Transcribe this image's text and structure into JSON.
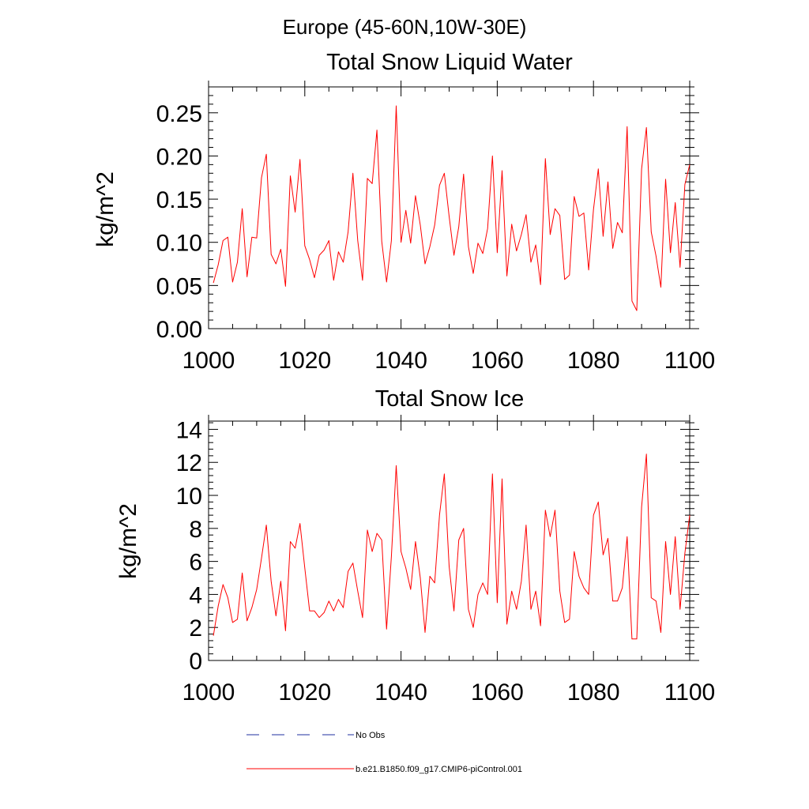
{
  "figure_title": "Europe (45-60N,10W-30E)",
  "colors": {
    "model_line": "#ff0000",
    "obs_line": "#1f2f9f",
    "axis": "#000000"
  },
  "legend": [
    {
      "label": "No Obs",
      "style": "dashed",
      "color": "#1f2f9f"
    },
    {
      "label": "b.e21.B1850.f09_g17.CMIP6-piControl.001",
      "style": "solid",
      "color": "#ff0000"
    }
  ],
  "chart_data": [
    {
      "type": "line",
      "title": "Total Snow Liquid Water",
      "xlabel": "",
      "ylabel": "kg/m^2",
      "xlim": [
        1000,
        1100
      ],
      "ylim": [
        0,
        0.28
      ],
      "xticks": [
        1000,
        1020,
        1040,
        1060,
        1080,
        1100
      ],
      "xtick_labels": [
        "1000",
        "1020",
        "1040",
        "1060",
        "1080",
        "1100"
      ],
      "yticks": [
        0,
        0.05,
        0.1,
        0.15,
        0.2,
        0.25
      ],
      "ytick_labels": [
        "0.00",
        "0.05",
        "0.10",
        "0.15",
        "0.20",
        "0.25"
      ],
      "series": [
        {
          "name": "b.e21.B1850.f09_g17.CMIP6-piControl.001",
          "x": [
            1001,
            1002,
            1003,
            1004,
            1005,
            1006,
            1007,
            1008,
            1009,
            1010,
            1011,
            1012,
            1013,
            1014,
            1015,
            1016,
            1017,
            1018,
            1019,
            1020,
            1021,
            1022,
            1023,
            1024,
            1025,
            1026,
            1027,
            1028,
            1029,
            1030,
            1031,
            1032,
            1033,
            1034,
            1035,
            1036,
            1037,
            1038,
            1039,
            1040,
            1041,
            1042,
            1043,
            1044,
            1045,
            1046,
            1047,
            1048,
            1049,
            1050,
            1051,
            1052,
            1053,
            1054,
            1055,
            1056,
            1057,
            1058,
            1059,
            1060,
            1061,
            1062,
            1063,
            1064,
            1065,
            1066,
            1067,
            1068,
            1069,
            1070,
            1071,
            1072,
            1073,
            1074,
            1075,
            1076,
            1077,
            1078,
            1079,
            1080,
            1081,
            1082,
            1083,
            1084,
            1085,
            1086,
            1087,
            1088,
            1089,
            1090,
            1091,
            1092,
            1093,
            1094,
            1095,
            1096,
            1097,
            1098,
            1099,
            1100
          ],
          "values": [
            0.053,
            0.074,
            0.102,
            0.106,
            0.054,
            0.077,
            0.139,
            0.06,
            0.106,
            0.105,
            0.175,
            0.202,
            0.086,
            0.075,
            0.092,
            0.049,
            0.177,
            0.135,
            0.196,
            0.096,
            0.08,
            0.059,
            0.085,
            0.091,
            0.102,
            0.056,
            0.089,
            0.077,
            0.112,
            0.18,
            0.102,
            0.056,
            0.174,
            0.168,
            0.23,
            0.101,
            0.054,
            0.102,
            0.258,
            0.1,
            0.137,
            0.099,
            0.154,
            0.12,
            0.075,
            0.095,
            0.12,
            0.166,
            0.18,
            0.13,
            0.085,
            0.118,
            0.179,
            0.095,
            0.064,
            0.099,
            0.087,
            0.116,
            0.2,
            0.088,
            0.183,
            0.061,
            0.121,
            0.09,
            0.109,
            0.132,
            0.077,
            0.097,
            0.051,
            0.197,
            0.109,
            0.139,
            0.131,
            0.057,
            0.062,
            0.153,
            0.13,
            0.134,
            0.068,
            0.138,
            0.185,
            0.107,
            0.17,
            0.093,
            0.123,
            0.111,
            0.234,
            0.032,
            0.021,
            0.185,
            0.233,
            0.112,
            0.084,
            0.048,
            0.173,
            0.088,
            0.146,
            0.071,
            0.167,
            0.19
          ]
        }
      ]
    },
    {
      "type": "line",
      "title": "Total Snow Ice",
      "xlabel": "",
      "ylabel": "kg/m^2",
      "xlim": [
        1000,
        1100
      ],
      "ylim": [
        0,
        14.5
      ],
      "xticks": [
        1000,
        1020,
        1040,
        1060,
        1080,
        1100
      ],
      "xtick_labels": [
        "1000",
        "1020",
        "1040",
        "1060",
        "1080",
        "1100"
      ],
      "yticks": [
        0,
        2,
        4,
        6,
        8,
        10,
        12,
        14
      ],
      "ytick_labels": [
        "0",
        "2",
        "4",
        "6",
        "8",
        "10",
        "12",
        "14"
      ],
      "series": [
        {
          "name": "b.e21.B1850.f09_g17.CMIP6-piControl.001",
          "x": [
            1001,
            1002,
            1003,
            1004,
            1005,
            1006,
            1007,
            1008,
            1009,
            1010,
            1011,
            1012,
            1013,
            1014,
            1015,
            1016,
            1017,
            1018,
            1019,
            1020,
            1021,
            1022,
            1023,
            1024,
            1025,
            1026,
            1027,
            1028,
            1029,
            1030,
            1031,
            1032,
            1033,
            1034,
            1035,
            1036,
            1037,
            1038,
            1039,
            1040,
            1041,
            1042,
            1043,
            1044,
            1045,
            1046,
            1047,
            1048,
            1049,
            1050,
            1051,
            1052,
            1053,
            1054,
            1055,
            1056,
            1057,
            1058,
            1059,
            1060,
            1061,
            1062,
            1063,
            1064,
            1065,
            1066,
            1067,
            1068,
            1069,
            1070,
            1071,
            1072,
            1073,
            1074,
            1075,
            1076,
            1077,
            1078,
            1079,
            1080,
            1081,
            1082,
            1083,
            1084,
            1085,
            1086,
            1087,
            1088,
            1089,
            1090,
            1091,
            1092,
            1093,
            1094,
            1095,
            1096,
            1097,
            1098,
            1099,
            1100
          ],
          "values": [
            1.5,
            3.3,
            4.6,
            3.8,
            2.3,
            2.5,
            5.3,
            2.4,
            3.2,
            4.3,
            6.2,
            8.2,
            4.8,
            2.7,
            4.8,
            1.8,
            7.2,
            6.8,
            8.3,
            5.6,
            3.0,
            3.0,
            2.6,
            2.9,
            3.6,
            3.0,
            3.7,
            3.2,
            5.4,
            5.9,
            4.2,
            2.6,
            7.9,
            6.6,
            7.7,
            7.3,
            1.9,
            6.3,
            11.8,
            6.6,
            5.6,
            4.3,
            7.2,
            5.0,
            1.7,
            5.1,
            4.7,
            8.8,
            11.3,
            5.7,
            3.0,
            7.3,
            8.0,
            3.1,
            2.0,
            4.0,
            4.7,
            4.0,
            11.3,
            3.5,
            11.0,
            2.2,
            4.2,
            3.1,
            4.8,
            8.2,
            3.1,
            4.2,
            2.1,
            9.1,
            7.5,
            9.1,
            4.2,
            2.3,
            2.5,
            6.6,
            5.1,
            4.4,
            4.0,
            8.8,
            9.6,
            6.4,
            7.4,
            3.6,
            3.6,
            4.4,
            7.5,
            1.3,
            1.3,
            9.3,
            12.5,
            3.8,
            3.6,
            1.7,
            7.2,
            4.0,
            7.5,
            3.1,
            6.5,
            8.8
          ]
        }
      ]
    }
  ]
}
